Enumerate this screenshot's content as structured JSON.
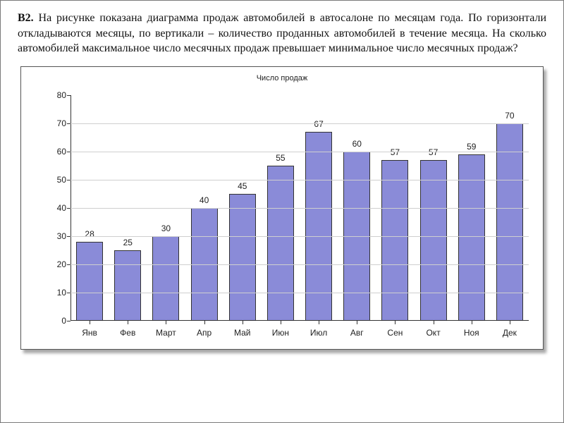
{
  "problem": {
    "label": "В2.",
    "text_part1": "На рисунке показана диаграмма продаж автомобилей в автосалоне по месяцам года. По горизонтали откладываются месяцы, по вертикали – количество проданных автомобилей в течение месяца. На сколько автомобилей максимальное число месячных продаж превышает минимальное число месячных продаж?"
  },
  "chart": {
    "type": "bar",
    "title": "Число продаж",
    "title_fontsize": 11,
    "categories": [
      "Янв",
      "Фев",
      "Март",
      "Апр",
      "Май",
      "Июн",
      "Июл",
      "Авг",
      "Сен",
      "Окт",
      "Ноя",
      "Дек"
    ],
    "values": [
      28,
      25,
      30,
      40,
      45,
      55,
      67,
      60,
      57,
      57,
      59,
      70
    ],
    "bar_color": "#8a8bd8",
    "bar_border_color": "#333333",
    "bar_width_ratio": 0.7,
    "ymin": 0,
    "ymax": 80,
    "ytick_step": 10,
    "grid_color": "#cfcfcf",
    "axis_color": "#333333",
    "background_color": "#ffffff",
    "tick_font_family": "Verdana",
    "tick_fontsize": 12,
    "text_color": "#222222",
    "page_border_color": "#7a7a7a",
    "shadow_color": "rgba(0,0,0,0.35)"
  }
}
